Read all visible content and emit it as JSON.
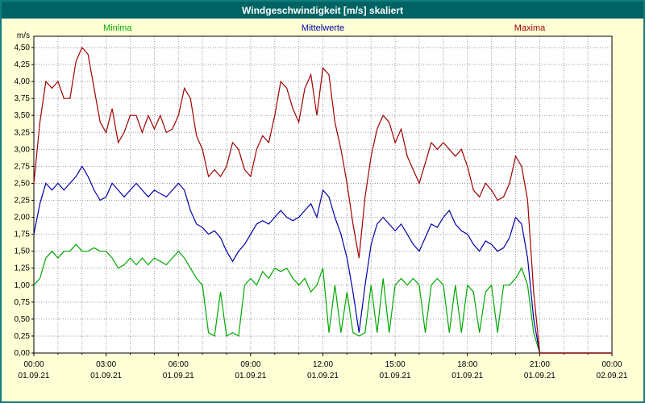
{
  "title_bar": {
    "title": "Windgeschwindigkeit [m/s] skaliert"
  },
  "colors": {
    "titlebar_bg": "#006363",
    "titlebar_text": "#ffffff",
    "window_bg": "#ffffd6",
    "window_border": "#0e7e7e",
    "plot_bg": "#ffffff",
    "plot_border": "#000000",
    "grid": "#9a9a9a",
    "axis_text": "#000000",
    "minima": "#00a800",
    "mittelwerte": "#0000a8",
    "maxima": "#a00000"
  },
  "chart_data": {
    "type": "line",
    "title": "Windgeschwindigkeit [m/s] skaliert",
    "ylabel": "m/s",
    "ylim": [
      0,
      4.5
    ],
    "y_tick_step": 0.25,
    "y_tick_labels": [
      "0,00",
      "0,25",
      "0,50",
      "0,75",
      "1,00",
      "1,25",
      "1,50",
      "1,75",
      "2,00",
      "2,25",
      "2,50",
      "2,75",
      "3,00",
      "3,25",
      "3,50",
      "3,75",
      "4,00",
      "4,25",
      "4,50"
    ],
    "x_range_hours": [
      0,
      24
    ],
    "x_tick_hours": [
      0,
      3,
      6,
      9,
      12,
      15,
      18,
      21,
      24
    ],
    "x_tick_labels": [
      "00:00",
      "03:00",
      "06:00",
      "09:00",
      "12:00",
      "15:00",
      "18:00",
      "21:00",
      "00:00"
    ],
    "x_date_labels": [
      "01.09.21",
      "01.09.21",
      "01.09.21",
      "01.09.21",
      "01.09.21",
      "01.09.21",
      "01.09.21",
      "01.09.21",
      "02.09.21"
    ],
    "grid": true,
    "legend_position": "top",
    "sample_interval_hours": 0.25,
    "series": [
      {
        "name": "Minima",
        "color": "#00a800",
        "values": [
          1.0,
          1.1,
          1.4,
          1.5,
          1.4,
          1.5,
          1.5,
          1.6,
          1.5,
          1.5,
          1.55,
          1.5,
          1.5,
          1.4,
          1.25,
          1.3,
          1.4,
          1.3,
          1.4,
          1.3,
          1.4,
          1.35,
          1.3,
          1.4,
          1.5,
          1.4,
          1.25,
          1.1,
          1.0,
          0.3,
          0.25,
          0.9,
          0.25,
          0.3,
          0.25,
          1.0,
          1.1,
          1.0,
          1.2,
          1.1,
          1.25,
          1.2,
          1.25,
          1.1,
          1.0,
          1.1,
          0.9,
          1.0,
          1.25,
          0.3,
          1.0,
          0.3,
          0.9,
          0.3,
          0.25,
          0.3,
          1.0,
          0.3,
          1.1,
          0.3,
          1.0,
          1.1,
          1.0,
          1.1,
          1.0,
          0.3,
          1.0,
          1.1,
          1.0,
          0.3,
          1.0,
          0.3,
          1.0,
          0.9,
          0.3,
          0.9,
          1.0,
          0.3,
          1.0,
          1.0,
          1.1,
          1.25,
          1.0,
          0.3,
          0.0,
          0.0,
          0.0,
          0.0,
          0.0,
          0.0,
          0.0,
          0.0,
          0.0,
          0.0,
          0.0,
          0.0,
          0.0
        ]
      },
      {
        "name": "Mittelwerte",
        "color": "#0000a8",
        "values": [
          1.75,
          2.2,
          2.5,
          2.4,
          2.5,
          2.4,
          2.5,
          2.6,
          2.75,
          2.6,
          2.4,
          2.25,
          2.3,
          2.5,
          2.4,
          2.3,
          2.4,
          2.5,
          2.4,
          2.3,
          2.4,
          2.35,
          2.3,
          2.4,
          2.5,
          2.4,
          2.1,
          1.9,
          1.85,
          1.75,
          1.8,
          1.7,
          1.5,
          1.35,
          1.5,
          1.6,
          1.75,
          1.9,
          1.95,
          1.9,
          2.0,
          2.1,
          2.0,
          1.95,
          2.0,
          2.1,
          2.2,
          2.0,
          2.4,
          2.3,
          2.0,
          1.75,
          1.4,
          0.9,
          0.3,
          1.0,
          1.6,
          1.9,
          2.0,
          1.9,
          1.8,
          1.9,
          1.75,
          1.6,
          1.5,
          1.7,
          1.9,
          1.85,
          2.0,
          2.1,
          1.9,
          1.8,
          1.75,
          1.6,
          1.5,
          1.65,
          1.6,
          1.5,
          1.55,
          1.7,
          2.0,
          1.9,
          1.4,
          0.5,
          0.0,
          0.0,
          0.0,
          0.0,
          0.0,
          0.0,
          0.0,
          0.0,
          0.0,
          0.0,
          0.0,
          0.0,
          0.0
        ]
      },
      {
        "name": "Maxima",
        "color": "#a00000",
        "values": [
          2.5,
          3.4,
          4.0,
          3.9,
          4.0,
          3.75,
          3.75,
          4.3,
          4.5,
          4.4,
          3.9,
          3.4,
          3.25,
          3.6,
          3.1,
          3.25,
          3.5,
          3.5,
          3.25,
          3.5,
          3.3,
          3.5,
          3.25,
          3.3,
          3.5,
          3.9,
          3.75,
          3.2,
          3.0,
          2.6,
          2.7,
          2.6,
          2.75,
          3.1,
          3.0,
          2.7,
          2.6,
          3.0,
          3.2,
          3.1,
          3.5,
          4.0,
          3.9,
          3.6,
          3.4,
          3.9,
          4.1,
          3.5,
          4.2,
          4.1,
          3.4,
          3.0,
          2.5,
          1.9,
          1.4,
          2.3,
          2.9,
          3.3,
          3.5,
          3.4,
          3.1,
          3.3,
          2.9,
          2.7,
          2.5,
          2.8,
          3.1,
          3.0,
          3.1,
          3.0,
          2.9,
          3.0,
          2.75,
          2.4,
          2.3,
          2.5,
          2.4,
          2.25,
          2.3,
          2.5,
          2.9,
          2.75,
          2.25,
          0.9,
          0.0,
          0.0,
          0.0,
          0.0,
          0.0,
          0.0,
          0.0,
          0.0,
          0.0,
          0.0,
          0.0,
          0.0,
          0.0
        ]
      }
    ]
  }
}
